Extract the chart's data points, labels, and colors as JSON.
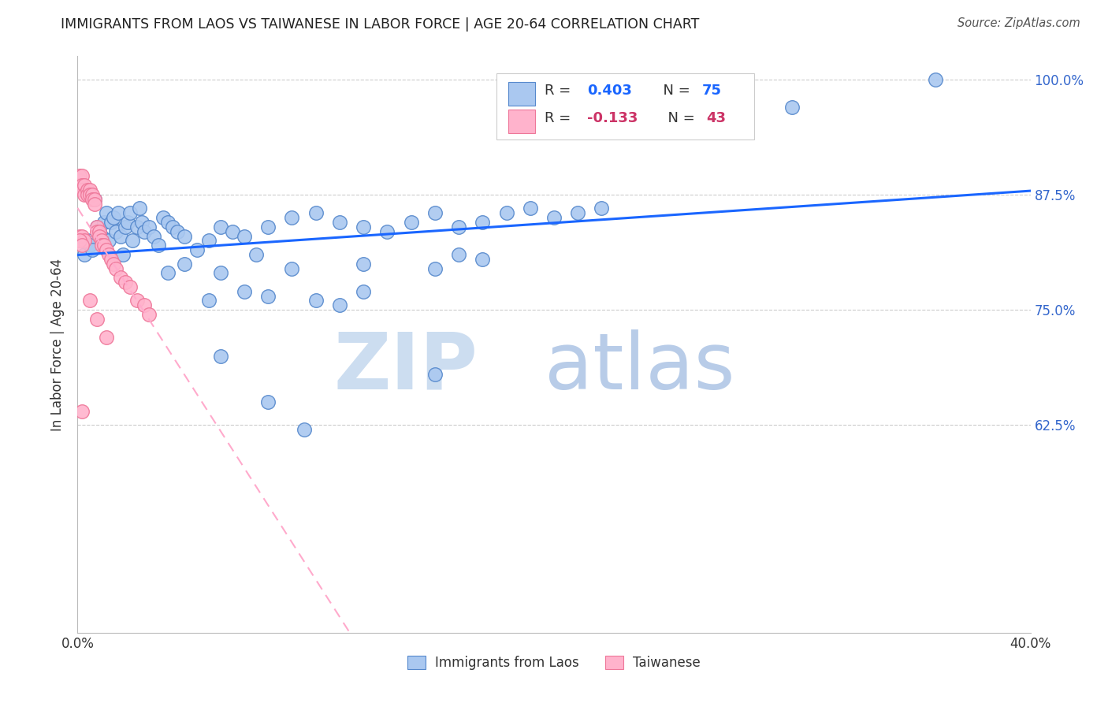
{
  "title": "IMMIGRANTS FROM LAOS VS TAIWANESE IN LABOR FORCE | AGE 20-64 CORRELATION CHART",
  "source": "Source: ZipAtlas.com",
  "ylabel": "In Labor Force | Age 20-64",
  "xlim": [
    0.0,
    0.4
  ],
  "ylim": [
    0.4,
    1.025
  ],
  "xticks": [
    0.0,
    0.05,
    0.1,
    0.15,
    0.2,
    0.25,
    0.3,
    0.35,
    0.4
  ],
  "xtick_labels": [
    "0.0%",
    "",
    "",
    "",
    "",
    "",
    "",
    "",
    "40.0%"
  ],
  "ytick_positions": [
    0.625,
    0.75,
    0.875,
    1.0
  ],
  "ytick_labels": [
    "62.5%",
    "75.0%",
    "87.5%",
    "100.0%"
  ],
  "blue_face": "#aac8f0",
  "blue_edge": "#5588cc",
  "pink_face": "#ffb3cc",
  "pink_edge": "#ee7799",
  "blue_line": "#1a66ff",
  "pink_line": "#ffaacc",
  "watermark_zip_color": "#ccddf0",
  "watermark_atlas_color": "#b8cce8",
  "legend_box_color": "#ffffff",
  "legend_edge_color": "#cccccc",
  "title_color": "#222222",
  "source_color": "#555555",
  "right_tick_color": "#3366cc",
  "grid_color": "#cccccc",
  "blue_dots_x": [
    0.003,
    0.004,
    0.005,
    0.006,
    0.007,
    0.008,
    0.009,
    0.01,
    0.011,
    0.012,
    0.013,
    0.014,
    0.015,
    0.016,
    0.017,
    0.018,
    0.019,
    0.02,
    0.021,
    0.022,
    0.023,
    0.025,
    0.026,
    0.027,
    0.028,
    0.03,
    0.032,
    0.034,
    0.036,
    0.038,
    0.04,
    0.042,
    0.045,
    0.05,
    0.055,
    0.06,
    0.065,
    0.07,
    0.08,
    0.09,
    0.1,
    0.11,
    0.12,
    0.13,
    0.14,
    0.15,
    0.16,
    0.17,
    0.18,
    0.19,
    0.2,
    0.21,
    0.22,
    0.038,
    0.045,
    0.06,
    0.075,
    0.09,
    0.12,
    0.15,
    0.16,
    0.17,
    0.055,
    0.07,
    0.08,
    0.1,
    0.11,
    0.12,
    0.3,
    0.36,
    0.15,
    0.06,
    0.08,
    0.095
  ],
  "blue_dots_y": [
    0.81,
    0.825,
    0.82,
    0.815,
    0.87,
    0.84,
    0.835,
    0.83,
    0.845,
    0.855,
    0.825,
    0.845,
    0.85,
    0.835,
    0.855,
    0.83,
    0.81,
    0.84,
    0.845,
    0.855,
    0.825,
    0.84,
    0.86,
    0.845,
    0.835,
    0.84,
    0.83,
    0.82,
    0.85,
    0.845,
    0.84,
    0.835,
    0.83,
    0.815,
    0.825,
    0.84,
    0.835,
    0.83,
    0.84,
    0.85,
    0.855,
    0.845,
    0.84,
    0.835,
    0.845,
    0.855,
    0.84,
    0.845,
    0.855,
    0.86,
    0.85,
    0.855,
    0.86,
    0.79,
    0.8,
    0.79,
    0.81,
    0.795,
    0.8,
    0.795,
    0.81,
    0.805,
    0.76,
    0.77,
    0.765,
    0.76,
    0.755,
    0.77,
    0.97,
    1.0,
    0.68,
    0.7,
    0.65,
    0.62
  ],
  "pink_dots_x": [
    0.001,
    0.001,
    0.001,
    0.002,
    0.002,
    0.002,
    0.003,
    0.003,
    0.004,
    0.004,
    0.005,
    0.005,
    0.006,
    0.006,
    0.007,
    0.007,
    0.008,
    0.008,
    0.009,
    0.009,
    0.01,
    0.01,
    0.011,
    0.012,
    0.013,
    0.014,
    0.015,
    0.016,
    0.018,
    0.02,
    0.022,
    0.025,
    0.028,
    0.03,
    0.001,
    0.002,
    0.003,
    0.001,
    0.002,
    0.005,
    0.008,
    0.012,
    0.002
  ],
  "pink_dots_y": [
    0.89,
    0.895,
    0.885,
    0.895,
    0.885,
    0.88,
    0.885,
    0.875,
    0.88,
    0.875,
    0.88,
    0.875,
    0.875,
    0.87,
    0.87,
    0.865,
    0.84,
    0.835,
    0.835,
    0.83,
    0.825,
    0.82,
    0.82,
    0.815,
    0.81,
    0.805,
    0.8,
    0.795,
    0.785,
    0.78,
    0.775,
    0.76,
    0.755,
    0.745,
    0.83,
    0.83,
    0.825,
    0.825,
    0.82,
    0.76,
    0.74,
    0.72,
    0.64
  ]
}
